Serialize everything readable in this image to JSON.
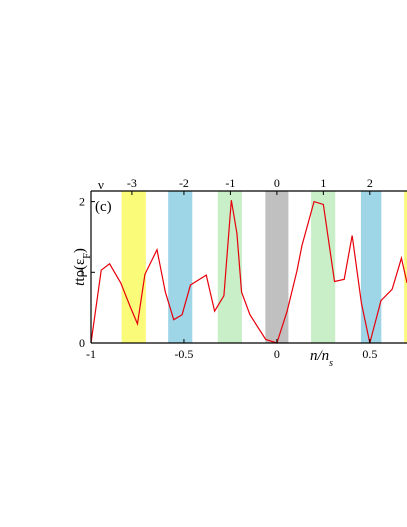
{
  "chart_data": {
    "type": "line",
    "panel_label": "(c)",
    "top_axis_label": "ν",
    "ylabel": {
      "prefix": "tρ(ε",
      "subscript": "F",
      "suffix": ")"
    },
    "xlabel": {
      "main": "n/n",
      "subscript": "s"
    },
    "xlim": [
      -1.0,
      0.7
    ],
    "ylim": [
      0,
      2.15
    ],
    "x_ticks": [
      {
        "value": -1,
        "label": "-1"
      },
      {
        "value": -0.5,
        "label": "-0.5"
      },
      {
        "value": 0,
        "label": "0"
      },
      {
        "value": 0.5,
        "label": "0.5"
      }
    ],
    "y_ticks": [
      {
        "value": 0,
        "label": "0"
      },
      {
        "value": 1,
        "label": "1"
      },
      {
        "value": 2,
        "label": "2"
      }
    ],
    "top_ticks": [
      {
        "value": -0.78,
        "label": "-3"
      },
      {
        "value": -0.5,
        "label": "-2"
      },
      {
        "value": -0.25,
        "label": "-1"
      },
      {
        "value": 0.0,
        "label": "0"
      },
      {
        "value": 0.25,
        "label": "1"
      },
      {
        "value": 0.5,
        "label": "2"
      }
    ],
    "bands": [
      {
        "x0": -0.835,
        "x1": -0.705,
        "color": "#fbfb7a"
      },
      {
        "x0": -0.585,
        "x1": -0.455,
        "color": "#9ed6e8"
      },
      {
        "x0": -0.318,
        "x1": -0.188,
        "color": "#c8efc8"
      },
      {
        "x0": -0.062,
        "x1": 0.062,
        "color": "#c0c0c0"
      },
      {
        "x0": 0.184,
        "x1": 0.314,
        "color": "#c8efc8"
      },
      {
        "x0": 0.452,
        "x1": 0.562,
        "color": "#9ed6e8"
      },
      {
        "x0": 0.685,
        "x1": 0.72,
        "color": "#fbfb7a"
      }
    ],
    "series": [
      {
        "color": "#e8000b",
        "x": [
          -1.0,
          -0.945,
          -0.9,
          -0.84,
          -0.79,
          -0.75,
          -0.71,
          -0.645,
          -0.6,
          -0.555,
          -0.51,
          -0.465,
          -0.38,
          -0.335,
          -0.285,
          -0.245,
          -0.215,
          -0.19,
          -0.145,
          -0.06,
          0.0,
          0.055,
          0.108,
          0.135,
          0.2,
          0.25,
          0.31,
          0.362,
          0.405,
          0.455,
          0.5,
          0.56,
          0.62,
          0.67,
          0.7
        ],
        "y": [
          0.0,
          1.03,
          1.12,
          0.85,
          0.52,
          0.27,
          0.97,
          1.32,
          0.72,
          0.33,
          0.4,
          0.82,
          0.96,
          0.45,
          0.67,
          2.02,
          1.55,
          0.72,
          0.4,
          0.05,
          0.0,
          0.45,
          1.02,
          1.38,
          2.0,
          1.96,
          0.87,
          0.9,
          1.52,
          0.56,
          0.0,
          0.6,
          0.76,
          1.2,
          0.85
        ]
      }
    ]
  }
}
